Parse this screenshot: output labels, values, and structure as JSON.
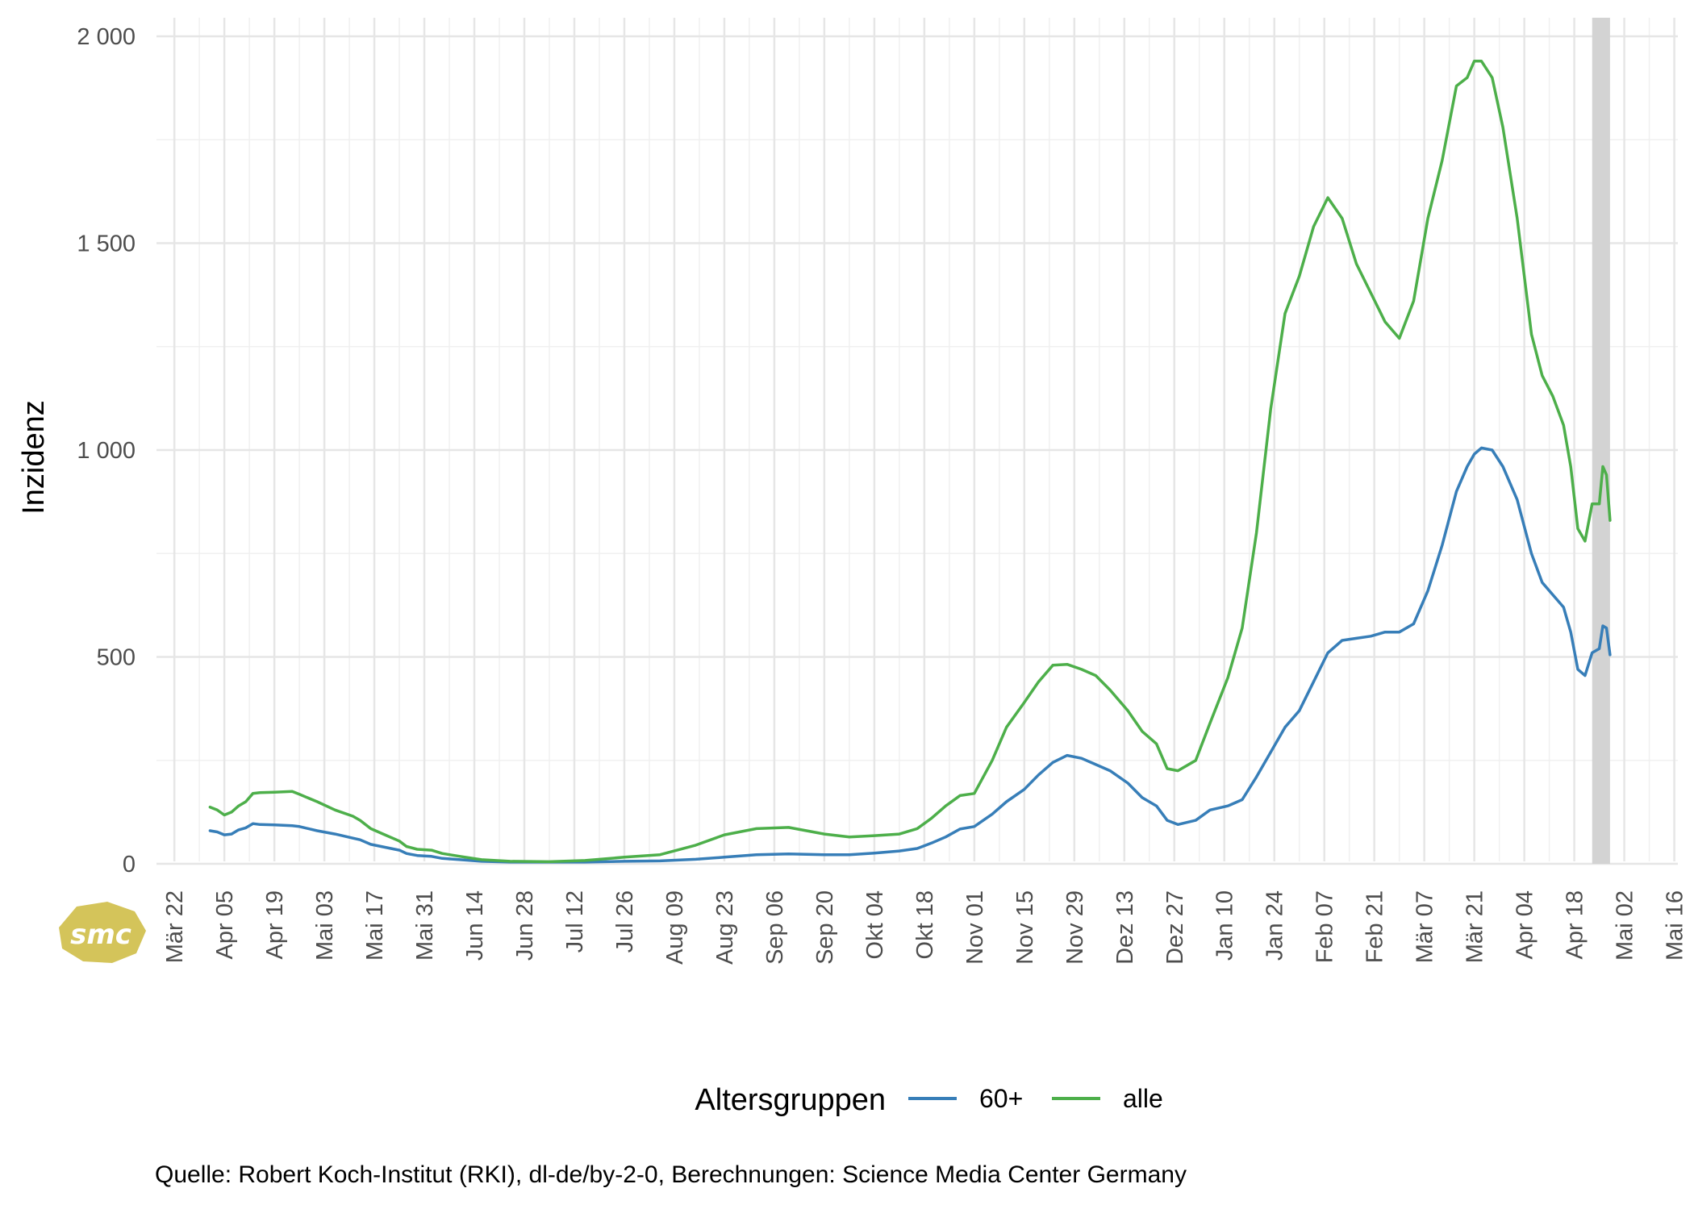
{
  "chart_data": {
    "type": "line",
    "ylabel": "Inzidenz",
    "ylim": [
      0,
      2000
    ],
    "yticks": [
      {
        "value": 0,
        "label": "0"
      },
      {
        "value": 500,
        "label": "500"
      },
      {
        "value": 1000,
        "label": "1 000"
      },
      {
        "value": 1500,
        "label": "1 500"
      },
      {
        "value": 2000,
        "label": "2 000"
      }
    ],
    "xlim": [
      "2020-03-17",
      "2021-05-17"
    ],
    "xticks": [
      {
        "date": "2020-03-22",
        "label": "Mär 22"
      },
      {
        "date": "2020-04-05",
        "label": "Apr 05"
      },
      {
        "date": "2020-04-19",
        "label": "Apr 19"
      },
      {
        "date": "2020-05-03",
        "label": "Mai 03"
      },
      {
        "date": "2020-05-17",
        "label": "Mai 17"
      },
      {
        "date": "2020-05-31",
        "label": "Mai 31"
      },
      {
        "date": "2020-06-14",
        "label": "Jun 14"
      },
      {
        "date": "2020-06-28",
        "label": "Jun 28"
      },
      {
        "date": "2020-07-12",
        "label": "Jul 12"
      },
      {
        "date": "2020-07-26",
        "label": "Jul 26"
      },
      {
        "date": "2020-08-09",
        "label": "Aug 09"
      },
      {
        "date": "2020-08-23",
        "label": "Aug 23"
      },
      {
        "date": "2020-09-06",
        "label": "Sep 06"
      },
      {
        "date": "2020-09-20",
        "label": "Sep 20"
      },
      {
        "date": "2020-10-04",
        "label": "Okt 04"
      },
      {
        "date": "2020-10-18",
        "label": "Okt 18"
      },
      {
        "date": "2020-11-01",
        "label": "Nov 01"
      },
      {
        "date": "2020-11-15",
        "label": "Nov 15"
      },
      {
        "date": "2020-11-29",
        "label": "Nov 29"
      },
      {
        "date": "2020-12-13",
        "label": "Dez 13"
      },
      {
        "date": "2020-12-27",
        "label": "Dez 27"
      },
      {
        "date": "2021-01-10",
        "label": "Jan 10"
      },
      {
        "date": "2021-01-24",
        "label": "Jan 24"
      },
      {
        "date": "2021-02-07",
        "label": "Feb 07"
      },
      {
        "date": "2021-02-21",
        "label": "Feb 21"
      },
      {
        "date": "2021-03-07",
        "label": "Mär 07"
      },
      {
        "date": "2021-03-21",
        "label": "Mär 21"
      },
      {
        "date": "2021-04-04",
        "label": "Apr 04"
      },
      {
        "date": "2021-04-18",
        "label": "Apr 18"
      },
      {
        "date": "2021-05-02",
        "label": "Mai 02"
      },
      {
        "date": "2021-05-16",
        "label": "Mai 16"
      }
    ],
    "grid": true,
    "highlight_band": {
      "start": "2021-04-23",
      "end": "2021-04-28",
      "color": "#d3d3d3"
    },
    "legend": {
      "title": "Altersgruppen",
      "position": "bottom"
    },
    "series": [
      {
        "name": "60+",
        "color": "#377eb8",
        "points": [
          [
            "2020-04-01",
            80
          ],
          [
            "2020-04-03",
            77
          ],
          [
            "2020-04-05",
            70
          ],
          [
            "2020-04-07",
            72
          ],
          [
            "2020-04-09",
            82
          ],
          [
            "2020-04-11",
            87
          ],
          [
            "2020-04-13",
            97
          ],
          [
            "2020-04-15",
            95
          ],
          [
            "2020-04-19",
            94
          ],
          [
            "2020-04-24",
            92
          ],
          [
            "2020-04-26",
            90
          ],
          [
            "2020-05-01",
            80
          ],
          [
            "2020-05-06",
            72
          ],
          [
            "2020-05-11",
            62
          ],
          [
            "2020-05-13",
            58
          ],
          [
            "2020-05-16",
            47
          ],
          [
            "2020-05-20",
            40
          ],
          [
            "2020-05-24",
            33
          ],
          [
            "2020-05-26",
            25
          ],
          [
            "2020-05-29",
            20
          ],
          [
            "2020-06-02",
            18
          ],
          [
            "2020-06-05",
            13
          ],
          [
            "2020-06-10",
            10
          ],
          [
            "2020-06-16",
            6
          ],
          [
            "2020-06-24",
            4
          ],
          [
            "2020-07-05",
            4
          ],
          [
            "2020-07-15",
            4
          ],
          [
            "2020-07-26",
            6
          ],
          [
            "2020-08-05",
            7
          ],
          [
            "2020-08-15",
            11
          ],
          [
            "2020-08-23",
            16
          ],
          [
            "2020-09-01",
            22
          ],
          [
            "2020-09-10",
            24
          ],
          [
            "2020-09-20",
            22
          ],
          [
            "2020-09-27",
            22
          ],
          [
            "2020-10-04",
            26
          ],
          [
            "2020-10-11",
            31
          ],
          [
            "2020-10-16",
            37
          ],
          [
            "2020-10-20",
            50
          ],
          [
            "2020-10-24",
            65
          ],
          [
            "2020-10-28",
            84
          ],
          [
            "2020-11-01",
            90
          ],
          [
            "2020-11-06",
            120
          ],
          [
            "2020-11-10",
            150
          ],
          [
            "2020-11-15",
            180
          ],
          [
            "2020-11-19",
            215
          ],
          [
            "2020-11-23",
            245
          ],
          [
            "2020-11-27",
            262
          ],
          [
            "2020-12-01",
            255
          ],
          [
            "2020-12-05",
            240
          ],
          [
            "2020-12-09",
            225
          ],
          [
            "2020-12-14",
            195
          ],
          [
            "2020-12-18",
            160
          ],
          [
            "2020-12-22",
            140
          ],
          [
            "2020-12-25",
            105
          ],
          [
            "2020-12-28",
            95
          ],
          [
            "2021-01-02",
            105
          ],
          [
            "2021-01-06",
            130
          ],
          [
            "2021-01-11",
            140
          ],
          [
            "2021-01-15",
            155
          ],
          [
            "2021-01-19",
            210
          ],
          [
            "2021-01-23",
            270
          ],
          [
            "2021-01-27",
            330
          ],
          [
            "2021-01-31",
            370
          ],
          [
            "2021-02-04",
            440
          ],
          [
            "2021-02-08",
            510
          ],
          [
            "2021-02-12",
            540
          ],
          [
            "2021-02-16",
            545
          ],
          [
            "2021-02-20",
            550
          ],
          [
            "2021-02-24",
            560
          ],
          [
            "2021-02-28",
            560
          ],
          [
            "2021-03-04",
            580
          ],
          [
            "2021-03-08",
            660
          ],
          [
            "2021-03-12",
            770
          ],
          [
            "2021-03-16",
            900
          ],
          [
            "2021-03-19",
            960
          ],
          [
            "2021-03-21",
            990
          ],
          [
            "2021-03-23",
            1005
          ],
          [
            "2021-03-26",
            1000
          ],
          [
            "2021-03-29",
            960
          ],
          [
            "2021-04-02",
            880
          ],
          [
            "2021-04-06",
            750
          ],
          [
            "2021-04-09",
            680
          ],
          [
            "2021-04-12",
            650
          ],
          [
            "2021-04-15",
            620
          ],
          [
            "2021-04-17",
            560
          ],
          [
            "2021-04-19",
            470
          ],
          [
            "2021-04-21",
            455
          ],
          [
            "2021-04-23",
            510
          ],
          [
            "2021-04-25",
            520
          ],
          [
            "2021-04-26",
            575
          ],
          [
            "2021-04-27",
            570
          ],
          [
            "2021-04-28",
            505
          ]
        ]
      },
      {
        "name": "alle",
        "color": "#4daf4a",
        "points": [
          [
            "2020-04-01",
            137
          ],
          [
            "2020-04-03",
            130
          ],
          [
            "2020-04-05",
            118
          ],
          [
            "2020-04-07",
            125
          ],
          [
            "2020-04-09",
            140
          ],
          [
            "2020-04-11",
            150
          ],
          [
            "2020-04-13",
            170
          ],
          [
            "2020-04-15",
            172
          ],
          [
            "2020-04-19",
            173
          ],
          [
            "2020-04-24",
            175
          ],
          [
            "2020-04-26",
            168
          ],
          [
            "2020-05-01",
            150
          ],
          [
            "2020-05-06",
            130
          ],
          [
            "2020-05-11",
            115
          ],
          [
            "2020-05-13",
            105
          ],
          [
            "2020-05-16",
            85
          ],
          [
            "2020-05-20",
            70
          ],
          [
            "2020-05-24",
            55
          ],
          [
            "2020-05-26",
            42
          ],
          [
            "2020-05-29",
            35
          ],
          [
            "2020-06-02",
            33
          ],
          [
            "2020-06-05",
            25
          ],
          [
            "2020-06-10",
            18
          ],
          [
            "2020-06-16",
            10
          ],
          [
            "2020-06-24",
            6
          ],
          [
            "2020-07-05",
            5
          ],
          [
            "2020-07-15",
            8
          ],
          [
            "2020-07-26",
            16
          ],
          [
            "2020-08-05",
            22
          ],
          [
            "2020-08-15",
            45
          ],
          [
            "2020-08-23",
            70
          ],
          [
            "2020-09-01",
            85
          ],
          [
            "2020-09-10",
            88
          ],
          [
            "2020-09-20",
            72
          ],
          [
            "2020-09-27",
            65
          ],
          [
            "2020-10-04",
            68
          ],
          [
            "2020-10-11",
            72
          ],
          [
            "2020-10-16",
            85
          ],
          [
            "2020-10-20",
            110
          ],
          [
            "2020-10-24",
            140
          ],
          [
            "2020-10-28",
            165
          ],
          [
            "2020-11-01",
            170
          ],
          [
            "2020-11-06",
            250
          ],
          [
            "2020-11-10",
            330
          ],
          [
            "2020-11-15",
            390
          ],
          [
            "2020-11-19",
            440
          ],
          [
            "2020-11-23",
            480
          ],
          [
            "2020-11-27",
            482
          ],
          [
            "2020-12-01",
            470
          ],
          [
            "2020-12-05",
            455
          ],
          [
            "2020-12-09",
            420
          ],
          [
            "2020-12-14",
            370
          ],
          [
            "2020-12-18",
            320
          ],
          [
            "2020-12-22",
            290
          ],
          [
            "2020-12-25",
            230
          ],
          [
            "2020-12-28",
            225
          ],
          [
            "2021-01-02",
            250
          ],
          [
            "2021-01-06",
            340
          ],
          [
            "2021-01-11",
            450
          ],
          [
            "2021-01-15",
            570
          ],
          [
            "2021-01-19",
            800
          ],
          [
            "2021-01-23",
            1100
          ],
          [
            "2021-01-27",
            1330
          ],
          [
            "2021-01-31",
            1420
          ],
          [
            "2021-02-04",
            1540
          ],
          [
            "2021-02-08",
            1610
          ],
          [
            "2021-02-12",
            1560
          ],
          [
            "2021-02-16",
            1450
          ],
          [
            "2021-02-20",
            1380
          ],
          [
            "2021-02-24",
            1310
          ],
          [
            "2021-02-28",
            1270
          ],
          [
            "2021-03-04",
            1360
          ],
          [
            "2021-03-08",
            1560
          ],
          [
            "2021-03-12",
            1700
          ],
          [
            "2021-03-16",
            1880
          ],
          [
            "2021-03-19",
            1900
          ],
          [
            "2021-03-21",
            1940
          ],
          [
            "2021-03-23",
            1940
          ],
          [
            "2021-03-26",
            1900
          ],
          [
            "2021-03-29",
            1780
          ],
          [
            "2021-04-02",
            1560
          ],
          [
            "2021-04-06",
            1280
          ],
          [
            "2021-04-09",
            1180
          ],
          [
            "2021-04-12",
            1130
          ],
          [
            "2021-04-15",
            1060
          ],
          [
            "2021-04-17",
            960
          ],
          [
            "2021-04-19",
            810
          ],
          [
            "2021-04-21",
            780
          ],
          [
            "2021-04-23",
            870
          ],
          [
            "2021-04-25",
            870
          ],
          [
            "2021-04-26",
            960
          ],
          [
            "2021-04-27",
            940
          ],
          [
            "2021-04-28",
            830
          ]
        ]
      }
    ]
  },
  "caption": "Quelle: Robert Koch-Institut (RKI), dl-de/by-2-0, Berechnungen: Science Media Center Germany",
  "logo": {
    "text": "smc",
    "color": "#d4c45a"
  }
}
